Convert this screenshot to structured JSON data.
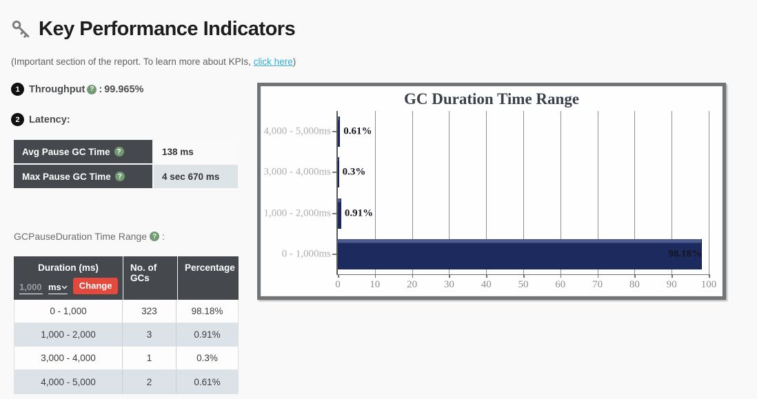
{
  "header": {
    "title": "Key Performance Indicators",
    "subtitle_prefix": "(Important section of the report. To learn more about KPIs, ",
    "subtitle_link": "click here",
    "subtitle_suffix": ")"
  },
  "throughput": {
    "badge": "1",
    "label": "Throughput",
    "help": "?",
    "separator": " : ",
    "value": "99.965%"
  },
  "latency": {
    "badge": "2",
    "label": "Latency:"
  },
  "latency_table": {
    "rows": [
      {
        "label": "Avg Pause GC Time",
        "help": "?",
        "value": "138 ms"
      },
      {
        "label": "Max Pause GC Time",
        "help": "?",
        "value": "4 sec 670 ms"
      }
    ]
  },
  "duration_section": {
    "label": "GCPauseDuration Time Range",
    "help": "?",
    "suffix": ":"
  },
  "duration_table": {
    "col_duration": "Duration (ms)",
    "col_count": "No. of GCs",
    "col_percentage": "Percentage",
    "input_value": "1,000",
    "unit": "ms",
    "change_label": "Change",
    "rows": [
      {
        "duration": "0 - 1,000",
        "count": "323",
        "percentage": "98.18%"
      },
      {
        "duration": "1,000 - 2,000",
        "count": "3",
        "percentage": "0.91%"
      },
      {
        "duration": "3,000 - 4,000",
        "count": "1",
        "percentage": "0.3%"
      },
      {
        "duration": "4,000 - 5,000",
        "count": "2",
        "percentage": "0.61%"
      }
    ]
  },
  "chart_data": {
    "type": "bar",
    "orientation": "horizontal",
    "title": "GC Duration Time Range",
    "categories": [
      "4,000 - 5,000ms",
      "3,000 - 4,000ms",
      "1,000 - 2,000ms",
      "0 - 1,000ms"
    ],
    "values": [
      0.61,
      0.3,
      0.91,
      98.18
    ],
    "value_labels": [
      "0.61%",
      "0.3%",
      "0.91%",
      "98.18%"
    ],
    "xlabel": "",
    "ylabel": "",
    "xlim": [
      0,
      100
    ],
    "x_ticks": [
      0,
      10,
      20,
      30,
      40,
      50,
      60,
      70,
      80,
      90,
      100
    ],
    "grid": true,
    "legend": false,
    "bar_color": "#1c2a5e"
  },
  "colors": {
    "link": "#31b0d5",
    "dark_cell": "#45494e",
    "alt_row": "#dce3e8",
    "change_button": "#e4493d",
    "help_icon": "#749a74",
    "bar": "#1c2a5e",
    "chart_frame": "#717477"
  }
}
